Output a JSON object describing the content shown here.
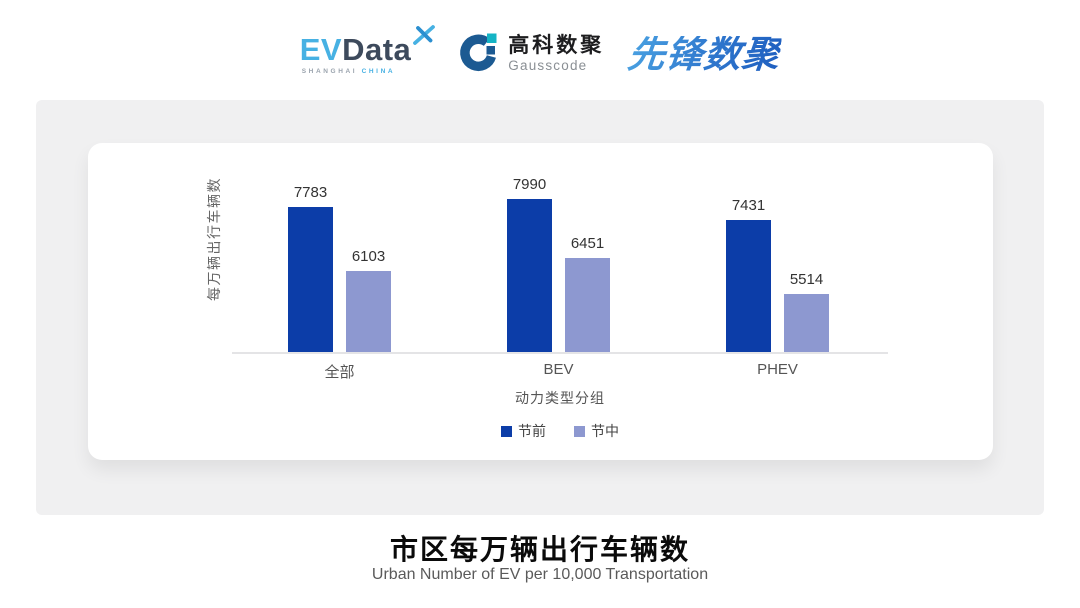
{
  "header": {
    "evdata": {
      "ev": "EV",
      "data": "Data",
      "sub_left": "SHANGHAI",
      "sub_right": "CHINA"
    },
    "gausscode": {
      "cn": "高科数聚",
      "en": "Gausscode"
    },
    "xianfeng": {
      "text": "先锋数聚"
    }
  },
  "chart_data": {
    "type": "bar",
    "title": "市区每万辆出行车辆数",
    "subtitle": "Urban Number of EV per 10,000 Transportation",
    "categories": [
      "全部",
      "BEV",
      "PHEV"
    ],
    "series": [
      {
        "name": "节前",
        "color": "#0c3da8",
        "values": [
          7783,
          7990,
          7431
        ]
      },
      {
        "name": "节中",
        "color": "#8d98d0",
        "values": [
          6103,
          6451,
          5514
        ]
      }
    ],
    "xlabel": "动力类型分组",
    "ylabel": "每万辆出行车辆数",
    "ylim": [
      4000,
      8400
    ],
    "grid": false,
    "legend_position": "bottom",
    "value_labels": true
  },
  "footer": {
    "title": "市区每万辆出行车辆数",
    "subtitle": "Urban Number of EV per 10,000 Transportation"
  },
  "colors": {
    "panel_gray": "#f0f0f1",
    "axis_line": "#e4e4e6",
    "evdata_blue": "#47b1e3",
    "evdata_dark": "#3d4a5c",
    "gausscode_blue": "#1c5a92",
    "gausscode_teal": "#15b4c5",
    "xianfeng_blue": "#2f77cd"
  }
}
